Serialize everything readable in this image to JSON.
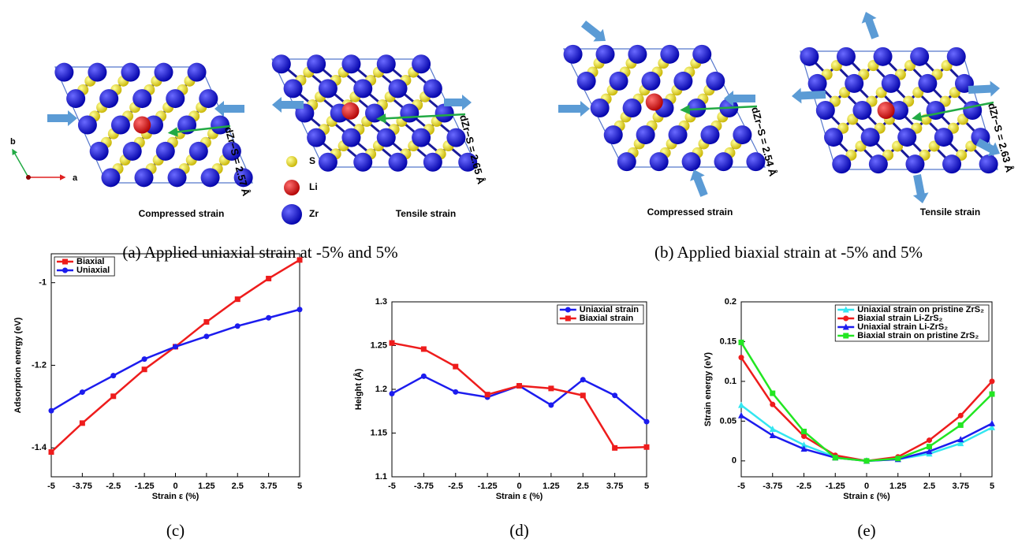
{
  "panels": [
    {
      "caption": "(a) Applied uniaxial strain at -5% and 5%",
      "structures": [
        {
          "label": "Compressed strain",
          "distance": "dZr−S = 2.57 Å"
        },
        {
          "label": "Tensile strain",
          "distance": "dZr−S = 2.65 Å"
        }
      ]
    },
    {
      "caption": "(b) Applied biaxial strain at -5% and 5%",
      "structures": [
        {
          "label": "Compressed strain",
          "distance": "dZr−S = 2.54 Å"
        },
        {
          "label": "Tensile strain",
          "distance": "dZr−S = 2.63 Å"
        }
      ]
    }
  ],
  "atom_legend": [
    "S",
    "Li",
    "Zr"
  ],
  "lattice_axes": [
    "a",
    "b"
  ],
  "chart_data": [
    {
      "type": "line",
      "caption": "(c)",
      "x_label": "Strain ε (%)",
      "y_label": "Adsorption energy (eV)",
      "x": [
        -5,
        -3.75,
        -2.5,
        -1.25,
        0,
        1.25,
        2.5,
        3.75,
        5
      ],
      "xlim": [
        -5,
        5
      ],
      "xticks": [
        -5,
        -3.75,
        -2.5,
        -1.25,
        0,
        1.25,
        2.5,
        3.75,
        5
      ],
      "ylim": [
        -1.47,
        -0.93
      ],
      "yticks": [
        -1.4,
        -1.2,
        -1
      ],
      "legend": "upper-left",
      "series": [
        {
          "name": "Biaxial",
          "color": "#ee1c1c",
          "marker": "square",
          "values": [
            -1.41,
            -1.34,
            -1.275,
            -1.21,
            -1.155,
            -1.095,
            -1.04,
            -0.99,
            -0.945
          ]
        },
        {
          "name": "Uniaxial",
          "color": "#1c1cee",
          "marker": "circle",
          "values": [
            -1.31,
            -1.265,
            -1.225,
            -1.185,
            -1.155,
            -1.13,
            -1.105,
            -1.085,
            -1.065
          ]
        }
      ]
    },
    {
      "type": "line",
      "caption": "(d)",
      "x_label": "Strain ε (%)",
      "y_label": "Height (Å)",
      "x": [
        -5,
        -3.75,
        -2.5,
        -1.25,
        0,
        1.25,
        2.5,
        3.75,
        5
      ],
      "xlim": [
        -5,
        5
      ],
      "xticks": [
        -5,
        -3.75,
        -2.5,
        -1.25,
        0,
        1.25,
        2.5,
        3.75,
        5
      ],
      "ylim": [
        1.1,
        1.3
      ],
      "yticks": [
        1.1,
        1.15,
        1.2,
        1.25,
        1.3
      ],
      "legend": "upper-right",
      "series": [
        {
          "name": "Uniaxial strain",
          "color": "#1c1cee",
          "marker": "circle",
          "values": [
            1.195,
            1.215,
            1.197,
            1.191,
            1.204,
            1.182,
            1.211,
            1.193,
            1.163
          ]
        },
        {
          "name": "Biaxial strain",
          "color": "#ee1c1c",
          "marker": "square",
          "values": [
            1.253,
            1.246,
            1.226,
            1.194,
            1.204,
            1.201,
            1.193,
            1.133,
            1.134
          ]
        }
      ]
    },
    {
      "type": "line",
      "caption": "(e)",
      "x_label": "Strain ε (%)",
      "y_label": "Strain energy (eV)",
      "x": [
        -5,
        -3.75,
        -2.5,
        -1.25,
        0,
        1.25,
        2.5,
        3.75,
        5
      ],
      "xlim": [
        -5,
        5
      ],
      "xticks": [
        -5,
        -3.75,
        -2.5,
        -1.25,
        0,
        1.25,
        2.5,
        3.75,
        5
      ],
      "ylim": [
        -0.02,
        0.2
      ],
      "yticks": [
        0,
        0.05,
        0.1,
        0.15,
        0.2
      ],
      "legend": "upper-right",
      "series": [
        {
          "name": "Uniaxial strain on pristine ZrS₂",
          "color": "#33e6f0",
          "marker": "triangle",
          "values": [
            0.07,
            0.04,
            0.02,
            0.005,
            0,
            0.002,
            0.009,
            0.022,
            0.042
          ]
        },
        {
          "name": "Biaxial strain Li-ZrS₂",
          "color": "#ee1c1c",
          "marker": "circle",
          "values": [
            0.13,
            0.071,
            0.031,
            0.007,
            0,
            0.005,
            0.026,
            0.057,
            0.1
          ]
        },
        {
          "name": "Uniaxial strain Li-ZrS₂",
          "color": "#1c1cee",
          "marker": "triangle",
          "values": [
            0.057,
            0.032,
            0.015,
            0.004,
            0,
            0.002,
            0.012,
            0.027,
            0.047
          ]
        },
        {
          "name": "Biaxial strain on pristine ZrS₂",
          "color": "#22e622",
          "marker": "square",
          "values": [
            0.149,
            0.085,
            0.037,
            0.004,
            0,
            0.003,
            0.018,
            0.045,
            0.084
          ]
        }
      ]
    }
  ]
}
